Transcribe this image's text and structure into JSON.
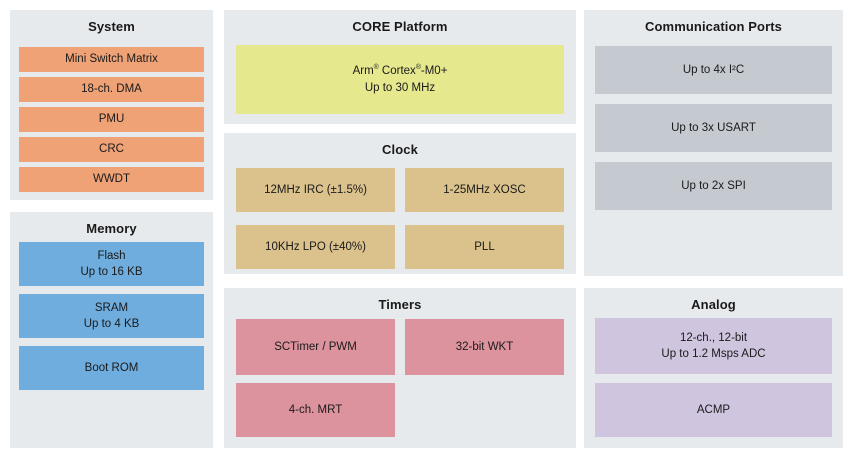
{
  "diagram": {
    "panel_bg": "#e7eaec",
    "panels": {
      "system": {
        "title": "System",
        "block_color": "#efa276",
        "blocks": [
          "Mini Switch Matrix",
          "18-ch. DMA",
          "PMU",
          "CRC",
          "WWDT"
        ]
      },
      "memory": {
        "title": "Memory",
        "block_color": "#6fadde",
        "blocks": [
          {
            "line1": "Flash",
            "line2": "Up to 16 KB"
          },
          {
            "line1": "SRAM",
            "line2": "Up to 4 KB"
          },
          {
            "line1": "Boot ROM",
            "line2": ""
          }
        ]
      },
      "core": {
        "title": "CORE Platform",
        "block_color": "#e6e88e",
        "blocks": [
          {
            "line1": "Arm® Cortex®-M0+",
            "line2": "Up to 30 MHz"
          }
        ]
      },
      "clock": {
        "title": "Clock",
        "block_color": "#dbc28c",
        "blocks": [
          "12MHz IRC (±1.5%)",
          "1-25MHz XOSC",
          "10KHz LPO (±40%)",
          "PLL"
        ]
      },
      "timers": {
        "title": "Timers",
        "block_color": "#dd939d",
        "blocks": [
          "SCTimer / PWM",
          "32-bit WKT",
          "4-ch. MRT"
        ]
      },
      "comm": {
        "title": "Communication Ports",
        "block_color": "#c5cad0",
        "blocks": [
          "Up to 4x I²C",
          "Up to 3x USART",
          "Up to 2x SPI"
        ]
      },
      "analog": {
        "title": "Analog",
        "block_color": "#cfc5df",
        "blocks": [
          {
            "line1": "12-ch., 12-bit",
            "line2": "Up to 1.2 Msps ADC"
          },
          {
            "line1": "ACMP",
            "line2": ""
          }
        ]
      }
    }
  }
}
